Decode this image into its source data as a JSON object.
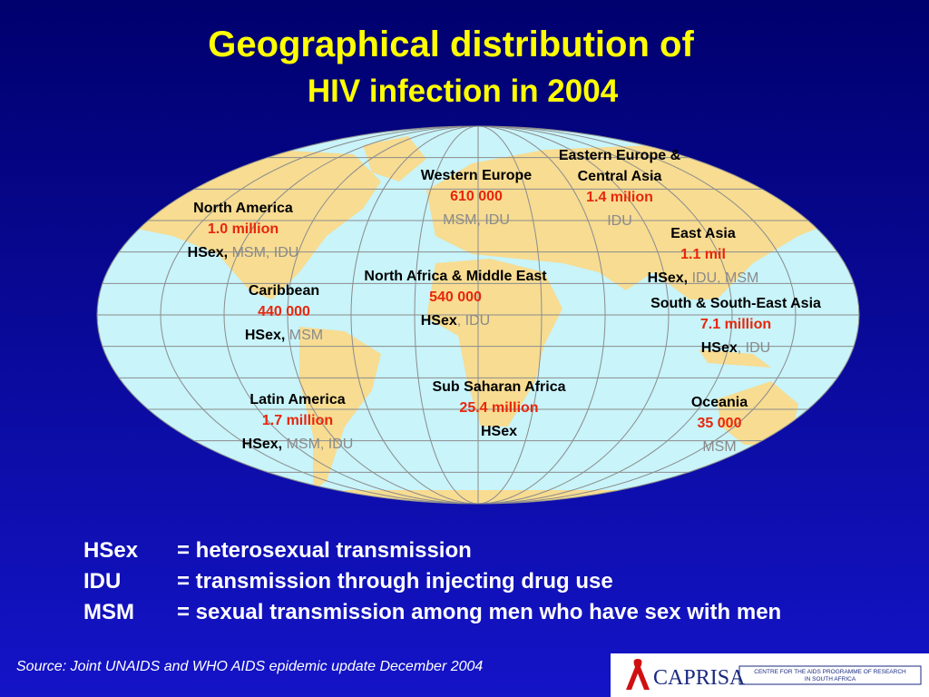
{
  "title": {
    "line1": "Geographical distribution of",
    "line2": "HIV infection in 2004"
  },
  "regions": [
    {
      "name": [
        "North America"
      ],
      "count": "1.0 million",
      "main": "HSex,",
      "other": "MSM, IDU"
    },
    {
      "name": [
        "Caribbean"
      ],
      "count": "440 000",
      "main": "HSex,",
      "other": "MSM"
    },
    {
      "name": [
        "Latin America"
      ],
      "count": "1.7 million",
      "main": "HSex,",
      "other": "MSM, IDU"
    },
    {
      "name": [
        "Western Europe"
      ],
      "count": "610 000",
      "other": "MSM, IDU"
    },
    {
      "name": [
        "Eastern Europe &",
        "Central  Asia"
      ],
      "count": "1.4 milion",
      "other": "IDU"
    },
    {
      "name": [
        "North Africa & Middle East"
      ],
      "count": "540 000",
      "main": "HSex",
      "other": ", IDU"
    },
    {
      "name": [
        "East Asia"
      ],
      "count": "1.1 mil",
      "main": "HSex,",
      "other": "IDU, MSM"
    },
    {
      "name": [
        "South & South-East Asia"
      ],
      "count": "7.1 million",
      "main": "HSex",
      "other": ", IDU"
    },
    {
      "name": [
        "Sub Saharan Africa"
      ],
      "count": "25.4 million",
      "main": "HSex"
    },
    {
      "name": [
        "Oceania"
      ],
      "count": "35 000",
      "other": "MSM"
    }
  ],
  "legend": [
    [
      "HSex",
      "= heterosexual transmission"
    ],
    [
      "IDU",
      "= transmission through injecting drug use"
    ],
    [
      "MSM",
      "= sexual transmission among men who have sex with men"
    ]
  ],
  "source": "Source: Joint UNAIDS and WHO AIDS epidemic update December 2004",
  "logo": {
    "name": "CAPRISA",
    "line1": "CENTRE FOR THE AIDS PROGRAMME OF RESEARCH",
    "line2": "IN SOUTH AFRICA"
  }
}
